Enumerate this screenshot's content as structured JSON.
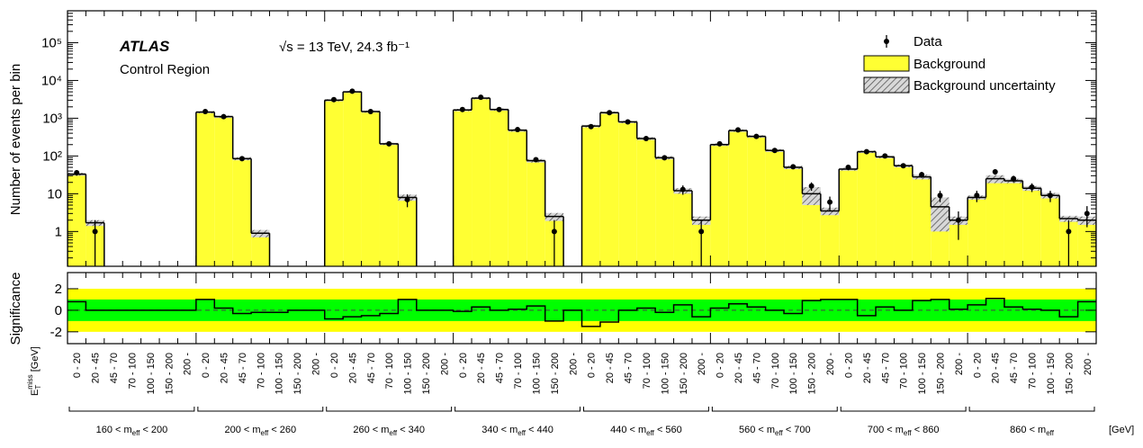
{
  "chart_data": {
    "type": "histogram",
    "experiment": "ATLAS",
    "region": "Control Region",
    "energy": "√s = 13 TeV, 24.3 fb⁻¹",
    "ylabel": "Number of events per bin",
    "ratio_ylabel": "Significance",
    "xlabel_main": "E",
    "xlabel_sub": "T",
    "xlabel_sup": "miss",
    "xlabel_unit": " [GeV]",
    "x_unit": "[GeV]",
    "met_bins": [
      "0 - 20",
      "20 - 45",
      "45 - 70",
      "70 - 100",
      "100 - 150",
      "150 - 200",
      "200 -"
    ],
    "regions": [
      [
        "160 < m",
        "eff",
        " < 200"
      ],
      [
        "200 < m",
        "eff",
        " < 260"
      ],
      [
        "260 < m",
        "eff",
        " < 340"
      ],
      [
        "340 < m",
        "eff",
        " < 440"
      ],
      [
        "440 < m",
        "eff",
        " < 560"
      ],
      [
        "560 < m",
        "eff",
        " < 700"
      ],
      [
        "700 < m",
        "eff",
        " < 860"
      ],
      [
        "860 < m",
        "eff"
      ]
    ],
    "log_y": true,
    "ylim": [
      0.12,
      700000
    ],
    "yticks": [
      1,
      10,
      {
        "value": 100,
        "label": "10²"
      },
      {
        "value": 1000,
        "label": "10³"
      },
      {
        "value": 10000,
        "label": "10⁴"
      },
      {
        "value": 100000,
        "label": "10⁵"
      }
    ],
    "ratio_ylim": [
      -3.1,
      3.5
    ],
    "ratio_yticks": [
      -2,
      0,
      2
    ],
    "bands": [
      {
        "level": 2,
        "color": "#ffff00"
      },
      {
        "level": 1,
        "color": "#00ff00"
      }
    ],
    "series": [
      {
        "name": "Background",
        "color": "#ffff33",
        "values": [
          33,
          1.7,
          null,
          null,
          null,
          null,
          null,
          1450,
          1100,
          85,
          0.9,
          null,
          null,
          null,
          3000,
          5000,
          1500,
          210,
          8,
          null,
          null,
          1650,
          3400,
          1700,
          480,
          75,
          2.5,
          null,
          620,
          1400,
          800,
          290,
          90,
          12,
          2,
          200,
          470,
          330,
          140,
          50,
          10,
          3.5,
          45,
          130,
          95,
          55,
          28,
          4.5,
          2,
          8,
          25,
          22,
          14,
          9,
          2.2,
          2
        ]
      },
      {
        "name": "Background uncertainty",
        "color": "#777777",
        "values": [
          3,
          0.3,
          null,
          null,
          null,
          null,
          null,
          100,
          80,
          8,
          0.2,
          null,
          null,
          null,
          200,
          300,
          100,
          15,
          1.5,
          null,
          null,
          120,
          250,
          120,
          40,
          8,
          0.6,
          null,
          50,
          100,
          60,
          25,
          9,
          2,
          0.5,
          15,
          35,
          25,
          12,
          5,
          5,
          0.8,
          4,
          10,
          8,
          5,
          4,
          3.5,
          0.5,
          1,
          6,
          3,
          2,
          1.5,
          0.4,
          0.5
        ]
      },
      {
        "name": "Data",
        "color": "#000000",
        "values": [
          36,
          1,
          null,
          null,
          null,
          null,
          null,
          1500,
          1100,
          85,
          null,
          null,
          null,
          null,
          3100,
          5200,
          1500,
          210,
          7,
          null,
          null,
          1700,
          3600,
          1700,
          500,
          80,
          1,
          null,
          600,
          1400,
          800,
          290,
          90,
          13,
          1,
          210,
          490,
          330,
          140,
          52,
          16,
          6,
          50,
          130,
          100,
          55,
          32,
          9,
          2,
          9,
          38,
          25,
          15,
          9,
          1,
          3
        ],
        "errors": [
          6,
          1,
          null,
          null,
          null,
          null,
          null,
          39,
          33,
          9,
          null,
          null,
          null,
          null,
          56,
          72,
          39,
          14,
          2.6,
          null,
          null,
          41,
          60,
          41,
          22,
          9,
          1,
          null,
          24,
          37,
          28,
          17,
          9.5,
          3.6,
          1,
          14.5,
          22,
          18,
          12,
          7.2,
          4,
          2.4,
          7,
          11.4,
          10,
          7.4,
          5.7,
          3,
          1.4,
          3,
          6.2,
          5,
          3.9,
          3,
          1,
          1.7
        ]
      }
    ],
    "significance": [
      0.8,
      0,
      0,
      0,
      0,
      0,
      0,
      1.0,
      0.2,
      -0.3,
      -0.2,
      -0.2,
      0,
      0,
      -0.8,
      -0.6,
      -0.5,
      -0.3,
      1.0,
      0,
      0,
      -0.1,
      0.3,
      0,
      0.1,
      0.4,
      -1.0,
      0,
      -1.5,
      -1.1,
      0,
      0.2,
      -0.2,
      0.5,
      -0.6,
      0.2,
      0.6,
      0.3,
      0,
      -0.3,
      0.9,
      1.0,
      1.0,
      -0.5,
      0.3,
      0,
      0.9,
      1.0,
      0.1,
      0.5,
      1.1,
      0.3,
      0.1,
      0,
      -0.6,
      0.8
    ],
    "legend": "upper right"
  }
}
